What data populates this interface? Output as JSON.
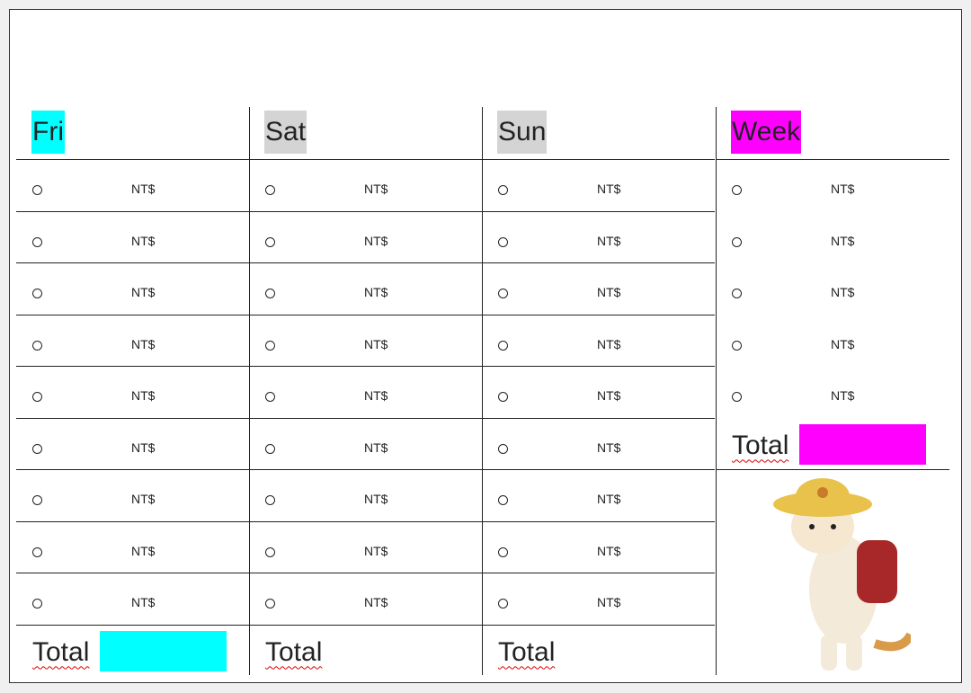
{
  "columns": [
    {
      "header": "Fri",
      "highlight": "#00ffff",
      "rows": [
        "NT$",
        "NT$",
        "NT$",
        "NT$",
        "NT$",
        "NT$",
        "NT$",
        "NT$",
        "NT$"
      ],
      "total": "Total",
      "total_highlight": "#00ffff"
    },
    {
      "header": "Sat",
      "highlight": "#d4d4d4",
      "rows": [
        "NT$",
        "NT$",
        "NT$",
        "NT$",
        "NT$",
        "NT$",
        "NT$",
        "NT$",
        "NT$"
      ],
      "total": "Total"
    },
    {
      "header": "Sun",
      "highlight": "#d4d4d4",
      "rows": [
        "NT$",
        "NT$",
        "NT$",
        "NT$",
        "NT$",
        "NT$",
        "NT$",
        "NT$",
        "NT$"
      ],
      "total": "Total"
    },
    {
      "header": "Week",
      "highlight": "#ff00ff",
      "rows": [
        "NT$",
        "NT$",
        "NT$",
        "NT$",
        "NT$"
      ],
      "total": "Total",
      "total_highlight": "#ff00ff"
    }
  ]
}
